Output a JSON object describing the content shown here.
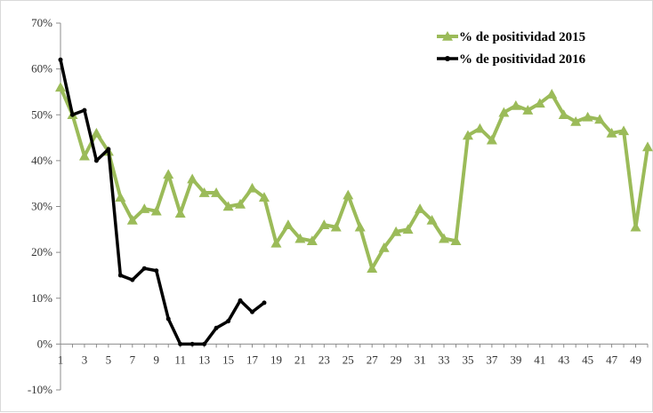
{
  "chart_data": {
    "type": "line",
    "title": "",
    "xlabel": "",
    "ylabel": "",
    "xlim": [
      1,
      50
    ],
    "ylim": [
      -10,
      70
    ],
    "y_ticks": [
      "70%",
      "60%",
      "50%",
      "40%",
      "30%",
      "20%",
      "10%",
      "0%",
      "-10%"
    ],
    "x_ticks": [
      "1",
      "3",
      "5",
      "7",
      "9",
      "11",
      "13",
      "15",
      "17",
      "19",
      "21",
      "23",
      "25",
      "27",
      "29",
      "31",
      "33",
      "35",
      "37",
      "39",
      "41",
      "43",
      "45",
      "47",
      "49"
    ],
    "grid": false,
    "legend_position": "top-right",
    "series": [
      {
        "name": "% de positividad 2015",
        "color": "#9bbb59",
        "marker": "triangle",
        "x": [
          1,
          2,
          3,
          4,
          5,
          6,
          7,
          8,
          9,
          10,
          11,
          12,
          13,
          14,
          15,
          16,
          17,
          18,
          19,
          20,
          21,
          22,
          23,
          24,
          25,
          26,
          27,
          28,
          29,
          30,
          31,
          32,
          33,
          34,
          35,
          36,
          37,
          38,
          39,
          40,
          41,
          42,
          43,
          44,
          45,
          46,
          47,
          48,
          49,
          50
        ],
        "values": [
          56,
          50,
          41,
          46,
          42,
          32,
          27,
          29.5,
          29,
          37,
          28.5,
          36,
          33,
          33,
          30,
          30.5,
          34,
          32,
          22,
          26,
          23,
          22.5,
          26,
          25.5,
          32.5,
          25.5,
          16.5,
          21,
          24.5,
          25,
          29.5,
          27,
          23,
          22.5,
          45.5,
          47,
          44.5,
          50.5,
          52,
          51,
          52.5,
          54.5,
          50,
          48.5,
          49.5,
          49,
          46,
          46.5,
          25.5,
          43
        ]
      },
      {
        "name": "% de positividad 2016",
        "color": "#000000",
        "marker": "circle",
        "x": [
          1,
          2,
          3,
          4,
          5,
          6,
          7,
          8,
          9,
          10,
          11,
          12,
          13,
          14,
          15,
          16,
          17,
          18
        ],
        "values": [
          62,
          50,
          51,
          40,
          42.5,
          15,
          14,
          16.5,
          16,
          5.5,
          0,
          0,
          0,
          3.5,
          5,
          9.5,
          7,
          9
        ]
      }
    ]
  }
}
